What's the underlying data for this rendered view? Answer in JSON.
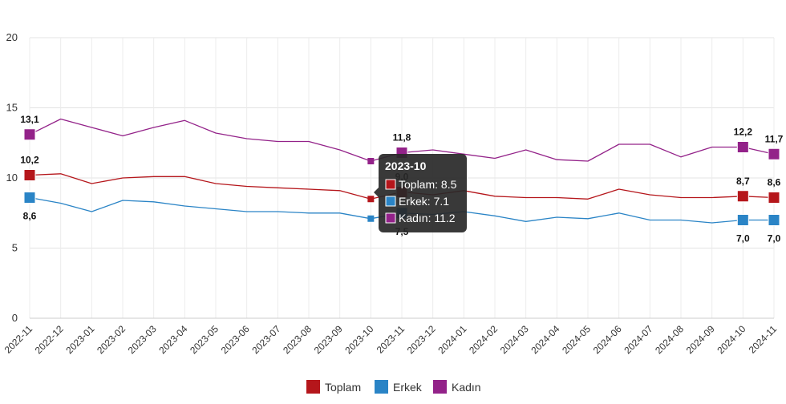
{
  "chart_data": {
    "type": "line",
    "y_ticks": [
      0,
      5,
      10,
      15,
      20
    ],
    "ylim": [
      0,
      20
    ],
    "grid": true,
    "legend_position": "bottom-center",
    "x": [
      "2022-11",
      "2022-12",
      "2023-01",
      "2023-02",
      "2023-03",
      "2023-04",
      "2023-05",
      "2023-06",
      "2023-07",
      "2023-08",
      "2023-09",
      "2023-10",
      "2023-11",
      "2023-12",
      "2024-01",
      "2024-02",
      "2024-03",
      "2024-04",
      "2024-05",
      "2024-06",
      "2024-07",
      "2024-08",
      "2024-09",
      "2024-10",
      "2024-11"
    ],
    "series": [
      {
        "name": "Toplam",
        "color": "#b5161b",
        "values": [
          10.2,
          10.3,
          9.6,
          10.0,
          10.1,
          10.1,
          9.6,
          9.4,
          9.3,
          9.2,
          9.1,
          8.5,
          9.0,
          8.8,
          9.1,
          8.7,
          8.6,
          8.6,
          8.5,
          9.2,
          8.8,
          8.6,
          8.6,
          8.7,
          8.6
        ],
        "labels": [
          {
            "index": 0,
            "text": "10,2",
            "position": "above"
          },
          {
            "index": 12,
            "text": "9,0",
            "position": "above"
          },
          {
            "index": 23,
            "text": "8,7",
            "position": "above"
          },
          {
            "index": 24,
            "text": "8,6",
            "position": "above"
          }
        ]
      },
      {
        "name": "Erkek",
        "color": "#2a84c6",
        "values": [
          8.6,
          8.2,
          7.6,
          8.4,
          8.3,
          8.0,
          7.8,
          7.6,
          7.6,
          7.5,
          7.5,
          7.1,
          7.5,
          7.4,
          7.6,
          7.3,
          6.9,
          7.2,
          7.1,
          7.5,
          7.0,
          7.0,
          6.8,
          7.0,
          7.0
        ],
        "labels": [
          {
            "index": 0,
            "text": "8,6",
            "position": "below"
          },
          {
            "index": 12,
            "text": "7,5",
            "position": "below"
          },
          {
            "index": 23,
            "text": "7,0",
            "position": "below"
          },
          {
            "index": 24,
            "text": "7,0",
            "position": "below"
          }
        ]
      },
      {
        "name": "Kadın",
        "color": "#932289",
        "values": [
          13.1,
          14.2,
          13.6,
          13.0,
          13.6,
          14.1,
          13.2,
          12.8,
          12.6,
          12.6,
          12.0,
          11.2,
          11.8,
          12.0,
          11.7,
          11.4,
          12.0,
          11.3,
          11.2,
          12.4,
          12.4,
          11.5,
          12.2,
          12.2,
          11.7
        ],
        "labels": [
          {
            "index": 0,
            "text": "13,1",
            "position": "above"
          },
          {
            "index": 12,
            "text": "11,8",
            "position": "above"
          },
          {
            "index": 23,
            "text": "12,2",
            "position": "above"
          },
          {
            "index": 24,
            "text": "11,7",
            "position": "above"
          }
        ]
      }
    ],
    "tooltip": {
      "index": 11,
      "title": "2023-10",
      "lines": [
        "Toplam: 8.5",
        "Erkek: 7.1",
        "Kadın: 11.2"
      ]
    }
  }
}
